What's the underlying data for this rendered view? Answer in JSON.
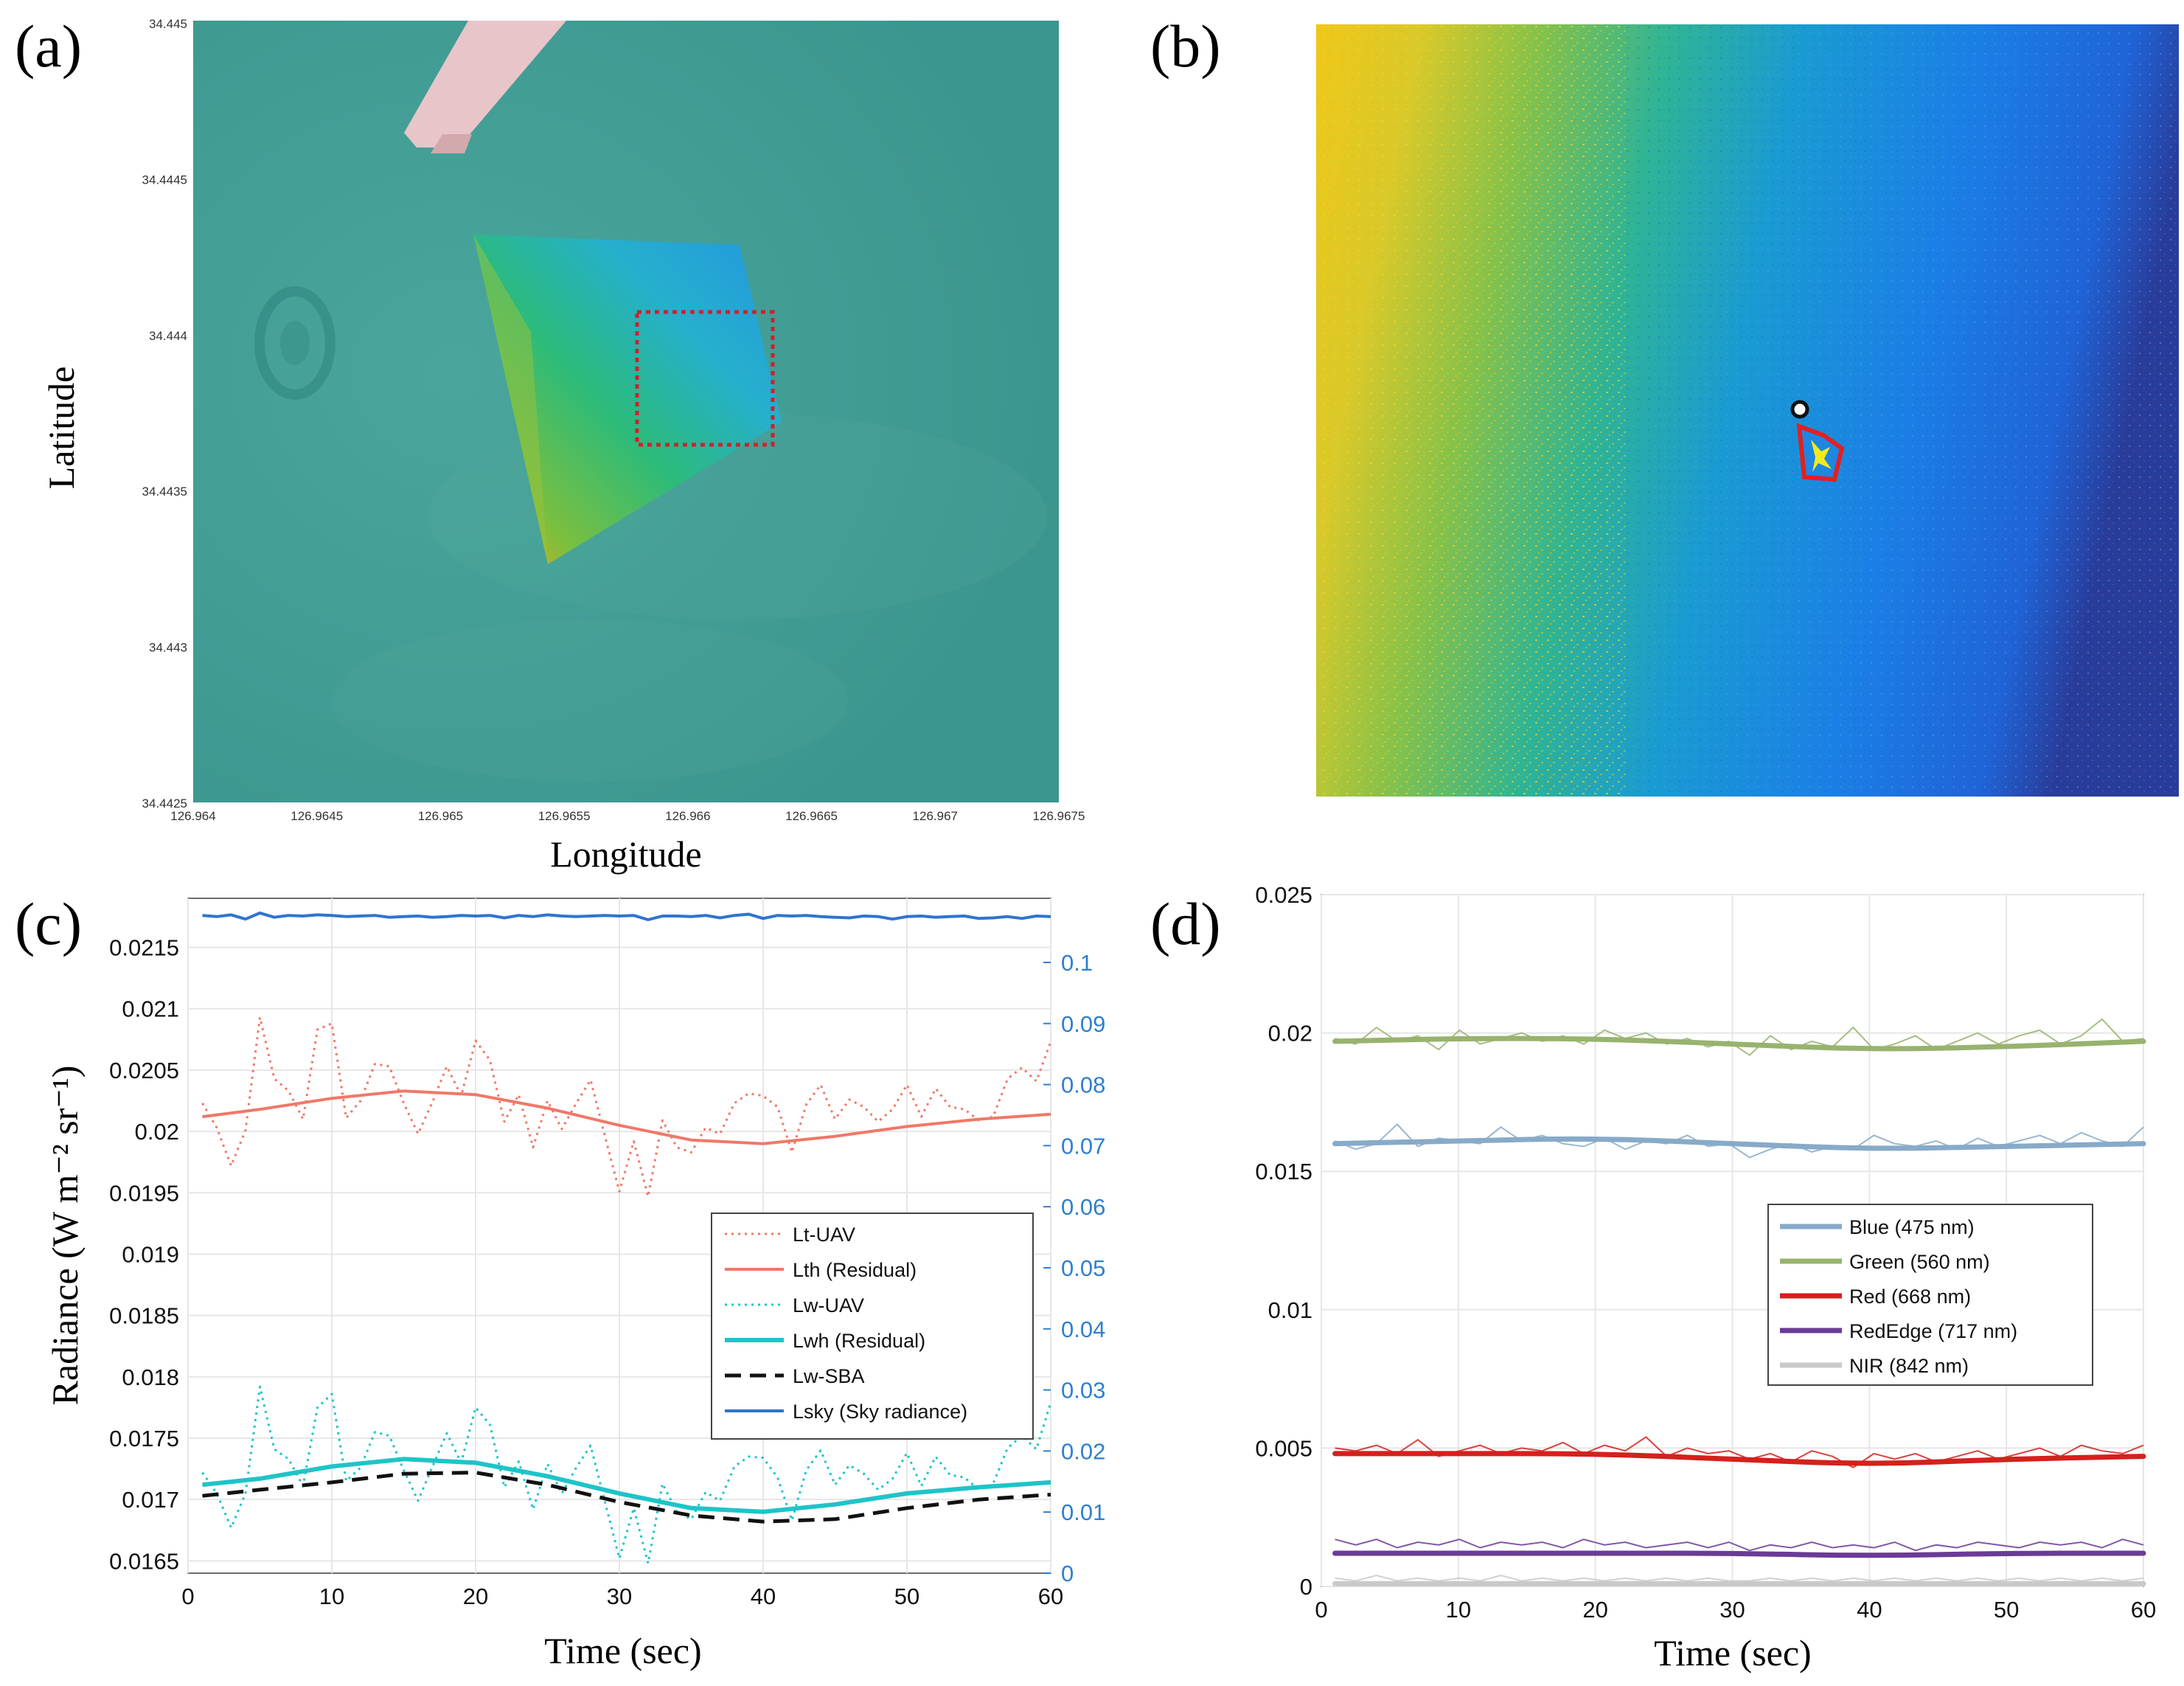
{
  "panels": {
    "a": {
      "label": "(a)",
      "xlabel": "Longitude",
      "ylabel": "Latitude",
      "xticks": [
        "126.964",
        "126.9645",
        "126.965",
        "126.9655",
        "126.966",
        "126.9665",
        "126.967",
        "126.9675"
      ],
      "yticks": [
        "34.445",
        "34.4445",
        "34.444",
        "34.4435",
        "34.443",
        "34.4425"
      ]
    },
    "b": {
      "label": "(b)"
    },
    "c": {
      "label": "(c)",
      "xlabel": "Time (sec)",
      "ylabel": "Radiance (W m⁻² sr⁻¹)"
    },
    "d": {
      "label": "(d)",
      "xlabel": "Time (sec)"
    }
  },
  "colors": {
    "sea": "#3d9c94",
    "lsky": "#2f74cf",
    "lt": "#f07868",
    "lw": "#1ec4c8",
    "blue": "#87aac8",
    "green": "#97b36e",
    "red": "#d4211c",
    "rededge": "#6a3b96",
    "nir": "#c9c9c9"
  },
  "chart_data": [
    {
      "id": "c",
      "type": "line",
      "xlabel": "Time (sec)",
      "ylabel": "Radiance (W m⁻² sr⁻¹)",
      "xlim": [
        0,
        60
      ],
      "ylim": [
        0.0164,
        0.0219
      ],
      "y2lim": [
        0,
        0.1105
      ],
      "xticks": [
        0,
        10,
        20,
        30,
        40,
        50,
        60
      ],
      "yticks": [
        0.0165,
        0.017,
        0.0175,
        0.018,
        0.0185,
        0.019,
        0.0195,
        0.02,
        0.0205,
        0.021,
        0.0215
      ],
      "ytick_labels": [
        "0.0165",
        "0.017",
        "0.0175",
        "0.018",
        "0.0185",
        "0.019",
        "0.0195",
        "0.02",
        "0.0205",
        "0.021",
        "0.0215"
      ],
      "y2ticks": [
        0,
        0.01,
        0.02,
        0.03,
        0.04,
        0.05,
        0.06,
        0.07,
        0.08,
        0.09,
        0.1
      ],
      "y2tick_labels": [
        "0",
        "0.01",
        "0.02",
        "0.03",
        "0.04",
        "0.05",
        "0.06",
        "0.07",
        "0.08",
        "0.09",
        "0.1"
      ],
      "legend_position": "lower-right",
      "series": [
        {
          "name": "Lt-UAV",
          "style": "dotted",
          "color": "#f07868",
          "axis": "left",
          "x": [
            1,
            2,
            3,
            4,
            5,
            6,
            7,
            8,
            9,
            10,
            11,
            12,
            13,
            14,
            15,
            16,
            17,
            18,
            19,
            20,
            21,
            22,
            23,
            24,
            25,
            26,
            27,
            28,
            29,
            30,
            31,
            32,
            33,
            34,
            35,
            36,
            37,
            38,
            39,
            40,
            41,
            42,
            43,
            44,
            45,
            46,
            47,
            48,
            49,
            50,
            51,
            52,
            53,
            54,
            55,
            56,
            57,
            58,
            59,
            60
          ],
          "values": [
            0.02023,
            0.02003,
            0.01972,
            0.02001,
            0.02093,
            0.02043,
            0.02033,
            0.0201,
            0.02083,
            0.02088,
            0.02011,
            0.02025,
            0.02055,
            0.02053,
            0.02023,
            0.01998,
            0.02024,
            0.02053,
            0.02029,
            0.02074,
            0.02058,
            0.02008,
            0.0203,
            0.01987,
            0.02025,
            0.02002,
            0.02023,
            0.02042,
            0.01996,
            0.01951,
            0.01992,
            0.01947,
            0.02009,
            0.01987,
            0.01983,
            0.02003,
            0.01998,
            0.02023,
            0.02031,
            0.02029,
            0.0202,
            0.01983,
            0.02022,
            0.02038,
            0.0201,
            0.02026,
            0.0202,
            0.02008,
            0.02018,
            0.02038,
            0.02012,
            0.02035,
            0.0202,
            0.02018,
            0.02009,
            0.02012,
            0.02043,
            0.02052,
            0.02041,
            0.02073
          ]
        },
        {
          "name": "Lth (Residual)",
          "style": "solid",
          "color": "#f07868",
          "axis": "left",
          "x": [
            1,
            5,
            10,
            15,
            20,
            25,
            30,
            35,
            40,
            45,
            50,
            55,
            60
          ],
          "values": [
            0.02012,
            0.02018,
            0.02027,
            0.02033,
            0.0203,
            0.02019,
            0.02005,
            0.01993,
            0.0199,
            0.01996,
            0.02004,
            0.0201,
            0.02014
          ]
        },
        {
          "name": "Lw-UAV",
          "style": "dotted",
          "color": "#1ec4c8",
          "axis": "left",
          "x": [
            1,
            2,
            3,
            4,
            5,
            6,
            7,
            8,
            9,
            10,
            11,
            12,
            13,
            14,
            15,
            16,
            17,
            18,
            19,
            20,
            21,
            22,
            23,
            24,
            25,
            26,
            27,
            28,
            29,
            30,
            31,
            32,
            33,
            34,
            35,
            36,
            37,
            38,
            39,
            40,
            41,
            42,
            43,
            44,
            45,
            46,
            47,
            48,
            49,
            50,
            51,
            52,
            53,
            54,
            55,
            56,
            57,
            58,
            59,
            60
          ],
          "values": [
            0.01722,
            0.01705,
            0.01677,
            0.01705,
            0.01792,
            0.01741,
            0.01733,
            0.01711,
            0.01775,
            0.01786,
            0.01715,
            0.01726,
            0.01755,
            0.01752,
            0.01724,
            0.01699,
            0.01727,
            0.01754,
            0.0173,
            0.01775,
            0.01761,
            0.0171,
            0.01731,
            0.01692,
            0.01729,
            0.01705,
            0.01726,
            0.01744,
            0.01698,
            0.01652,
            0.01693,
            0.01648,
            0.01713,
            0.0169,
            0.01684,
            0.01706,
            0.01699,
            0.01727,
            0.01735,
            0.01734,
            0.01718,
            0.01683,
            0.01724,
            0.0174,
            0.01712,
            0.01728,
            0.01721,
            0.01708,
            0.01717,
            0.01738,
            0.01711,
            0.01735,
            0.0172,
            0.01718,
            0.01708,
            0.01713,
            0.01742,
            0.01752,
            0.01741,
            0.01779
          ]
        },
        {
          "name": "Lwh (Residual)",
          "style": "solid",
          "color": "#1ec4c8",
          "axis": "left",
          "x": [
            1,
            5,
            10,
            15,
            20,
            25,
            30,
            35,
            40,
            45,
            50,
            55,
            60
          ],
          "values": [
            0.01712,
            0.01717,
            0.01727,
            0.01733,
            0.0173,
            0.01719,
            0.01705,
            0.01693,
            0.0169,
            0.01696,
            0.01705,
            0.0171,
            0.01714
          ]
        },
        {
          "name": "Lw-SBA",
          "style": "dashed",
          "color": "#111111",
          "axis": "left",
          "x": [
            1,
            5,
            10,
            15,
            20,
            25,
            30,
            35,
            40,
            45,
            50,
            55,
            60
          ],
          "values": [
            0.01703,
            0.01708,
            0.01714,
            0.01721,
            0.01722,
            0.01712,
            0.01698,
            0.01687,
            0.01682,
            0.01684,
            0.01693,
            0.017,
            0.01704
          ]
        },
        {
          "name": "Lsky (Sky radiance)",
          "style": "solid",
          "color": "#2f74cf",
          "axis": "right",
          "x": [
            1,
            2,
            3,
            4,
            5,
            6,
            7,
            8,
            9,
            10,
            11,
            12,
            13,
            14,
            15,
            16,
            17,
            18,
            19,
            20,
            21,
            22,
            23,
            24,
            25,
            26,
            27,
            28,
            29,
            30,
            31,
            32,
            33,
            34,
            35,
            36,
            37,
            38,
            39,
            40,
            41,
            42,
            43,
            44,
            45,
            46,
            47,
            48,
            49,
            50,
            51,
            52,
            53,
            54,
            55,
            56,
            57,
            58,
            59,
            60
          ],
          "values": [
            0.1077,
            0.1075,
            0.1078,
            0.1071,
            0.1081,
            0.1074,
            0.1077,
            0.1076,
            0.1078,
            0.1077,
            0.1075,
            0.1076,
            0.1077,
            0.1074,
            0.1075,
            0.1076,
            0.1074,
            0.1075,
            0.1077,
            0.1076,
            0.1077,
            0.1073,
            0.1077,
            0.1075,
            0.1078,
            0.1076,
            0.1075,
            0.1076,
            0.1077,
            0.1076,
            0.1077,
            0.107,
            0.1076,
            0.1076,
            0.1075,
            0.1077,
            0.1073,
            0.1077,
            0.1079,
            0.1072,
            0.1077,
            0.1076,
            0.1077,
            0.1075,
            0.1074,
            0.1073,
            0.1076,
            0.1075,
            0.1071,
            0.1075,
            0.1076,
            0.1074,
            0.1075,
            0.1076,
            0.1072,
            0.1073,
            0.1075,
            0.1072,
            0.1076,
            0.1075
          ]
        }
      ]
    },
    {
      "id": "d",
      "type": "line",
      "xlabel": "Time (sec)",
      "ylabel": "",
      "xlim": [
        0,
        60
      ],
      "ylim": [
        0,
        0.025
      ],
      "xticks": [
        0,
        10,
        20,
        30,
        40,
        50,
        60
      ],
      "yticks": [
        0,
        0.005,
        0.01,
        0.015,
        0.02,
        0.025
      ],
      "ytick_labels": [
        "0",
        "0.005",
        "0.01",
        "0.015",
        "0.02",
        "0.025"
      ],
      "legend_position": "center-right",
      "series": [
        {
          "name": "Blue (475 nm)",
          "color": "#87aac8",
          "smooth": [
            0.016,
            0.0161,
            0.0162,
            0.016,
            0.0158,
            0.0159,
            0.016
          ],
          "raw": [
            0.0161,
            0.0158,
            0.016,
            0.0167,
            0.0159,
            0.0162,
            0.0161,
            0.016,
            0.0166,
            0.0161,
            0.0163,
            0.016,
            0.0159,
            0.0162,
            0.0158,
            0.0161,
            0.016,
            0.0163,
            0.0159,
            0.016,
            0.0155,
            0.0158,
            0.016,
            0.0157,
            0.0159,
            0.0158,
            0.0163,
            0.016,
            0.0159,
            0.0161,
            0.0158,
            0.0162,
            0.0159,
            0.0161,
            0.0163,
            0.016,
            0.0164,
            0.0161,
            0.0159,
            0.0166
          ],
          "x_smooth": [
            1,
            10,
            20,
            30,
            40,
            50,
            60
          ]
        },
        {
          "name": "Green (560 nm)",
          "color": "#97b36e",
          "smooth": [
            0.0197,
            0.0198,
            0.0198,
            0.0196,
            0.0194,
            0.0195,
            0.0197
          ],
          "raw": [
            0.0198,
            0.0196,
            0.0202,
            0.0197,
            0.0199,
            0.0194,
            0.0201,
            0.0196,
            0.0198,
            0.02,
            0.0197,
            0.0199,
            0.0196,
            0.0201,
            0.0198,
            0.02,
            0.0196,
            0.0198,
            0.0195,
            0.0197,
            0.0192,
            0.0199,
            0.0194,
            0.0197,
            0.0195,
            0.0202,
            0.0194,
            0.0196,
            0.0199,
            0.0194,
            0.0197,
            0.02,
            0.0196,
            0.0199,
            0.0201,
            0.0196,
            0.0199,
            0.0205,
            0.0197,
            0.0198
          ],
          "x_smooth": [
            1,
            10,
            20,
            30,
            40,
            50,
            60
          ]
        },
        {
          "name": "Red (668 nm)",
          "color": "#d4211c",
          "smooth": [
            0.0048,
            0.0048,
            0.0048,
            0.0046,
            0.0044,
            0.0046,
            0.0047
          ],
          "raw": [
            0.005,
            0.0049,
            0.0051,
            0.0048,
            0.0053,
            0.0047,
            0.0049,
            0.0051,
            0.0048,
            0.005,
            0.0049,
            0.0052,
            0.0048,
            0.0051,
            0.0049,
            0.0054,
            0.0047,
            0.005,
            0.0048,
            0.0049,
            0.0046,
            0.0048,
            0.0045,
            0.0049,
            0.0047,
            0.0043,
            0.0048,
            0.0046,
            0.0048,
            0.0045,
            0.0047,
            0.0049,
            0.0046,
            0.0048,
            0.005,
            0.0047,
            0.0051,
            0.0049,
            0.0048,
            0.0051
          ],
          "x_smooth": [
            1,
            10,
            20,
            30,
            40,
            50,
            60
          ]
        },
        {
          "name": "RedEdge (717 nm)",
          "color": "#6a3b96",
          "smooth": [
            0.0012,
            0.0012,
            0.0012,
            0.0012,
            0.0011,
            0.0012,
            0.0012
          ],
          "raw": [
            0.0017,
            0.0015,
            0.0017,
            0.0014,
            0.0016,
            0.0015,
            0.0017,
            0.0014,
            0.0016,
            0.0015,
            0.0016,
            0.0014,
            0.0017,
            0.0015,
            0.0016,
            0.0014,
            0.0015,
            0.0016,
            0.0014,
            0.0016,
            0.0013,
            0.0015,
            0.0014,
            0.0016,
            0.0014,
            0.0015,
            0.0014,
            0.0016,
            0.0013,
            0.0015,
            0.0014,
            0.0016,
            0.0015,
            0.0014,
            0.0016,
            0.0015,
            0.0016,
            0.0014,
            0.0017,
            0.0015
          ],
          "x_smooth": [
            1,
            10,
            20,
            30,
            40,
            50,
            60
          ]
        },
        {
          "name": "NIR (842 nm)",
          "color": "#c9c9c9",
          "smooth": [
            0.0001,
            0.0001,
            0.0001,
            0.0001,
            0.0001,
            0.0001,
            0.0001
          ],
          "raw": [
            0.0003,
            0.0002,
            0.0004,
            0.0002,
            0.0003,
            0.0002,
            0.0003,
            0.0002,
            0.0004,
            0.0002,
            0.0003,
            0.0002,
            0.0003,
            0.0002,
            0.0003,
            0.0002,
            0.0003,
            0.0002,
            0.0003,
            0.0002,
            0.0002,
            0.0003,
            0.0002,
            0.0003,
            0.0002,
            0.0003,
            0.0002,
            0.0003,
            0.0002,
            0.0003,
            0.0002,
            0.0003,
            0.0002,
            0.0003,
            0.0002,
            0.0003,
            0.0002,
            0.0003,
            0.0002,
            0.0003
          ],
          "x_smooth": [
            1,
            10,
            20,
            30,
            40,
            50,
            60
          ]
        }
      ]
    }
  ]
}
